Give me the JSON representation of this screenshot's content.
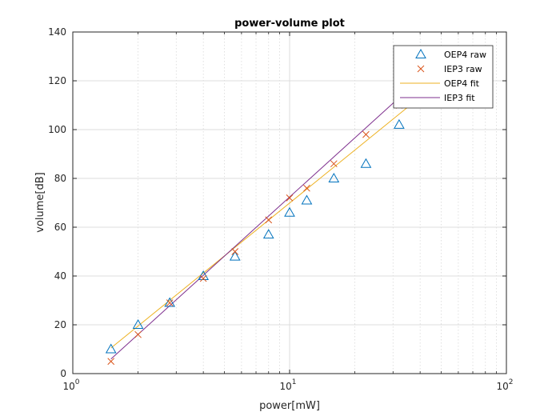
{
  "chart_data": {
    "type": "scatter",
    "title": "power-volume plot",
    "xlabel": "power[mW]",
    "ylabel": "volume[dB]",
    "xscale": "log",
    "xlim": [
      1,
      100
    ],
    "ylim": [
      0,
      140
    ],
    "y_ticks": [
      0,
      20,
      40,
      60,
      80,
      100,
      120,
      140
    ],
    "x_ticks": [
      {
        "value": 1,
        "base": "10",
        "exp": "0"
      },
      {
        "value": 10,
        "base": "10",
        "exp": "1"
      },
      {
        "value": 100,
        "base": "10",
        "exp": "2"
      }
    ],
    "grid": true,
    "legend_position": "top-right",
    "series": [
      {
        "name": "OEP4 raw",
        "kind": "marker",
        "marker": "triangle",
        "color": "#0072BD",
        "x": [
          1.5,
          2,
          2.8,
          4,
          5.6,
          8,
          10,
          12,
          16,
          22.5,
          32
        ],
        "y": [
          10,
          20,
          29,
          40,
          48,
          57,
          66,
          71,
          80,
          86,
          102
        ]
      },
      {
        "name": "IEP3 raw",
        "kind": "marker",
        "marker": "x",
        "color": "#D95319",
        "x": [
          1.5,
          2,
          2.8,
          4,
          5.6,
          8,
          10,
          12,
          16,
          22.5,
          32
        ],
        "y": [
          5,
          16,
          29,
          39,
          50,
          63,
          72,
          76,
          86,
          98,
          110
        ]
      },
      {
        "name": "OEP4 fit",
        "kind": "line",
        "color": "#EDB120",
        "x": [
          1.5,
          45
        ],
        "y": [
          10.5,
          117
        ]
      },
      {
        "name": "IEP3 fit",
        "kind": "line",
        "color": "#7E2F8E",
        "x": [
          1.5,
          45
        ],
        "y": [
          6,
          125
        ]
      }
    ]
  }
}
